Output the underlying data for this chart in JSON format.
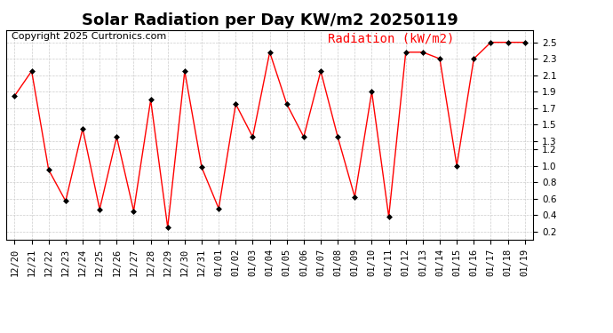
{
  "title": "Solar Radiation per Day KW/m2 20250119",
  "copyright": "Copyright 2025 Curtronics.com",
  "legend_label": "Radiation (kW/m2)",
  "dates": [
    "12/20",
    "12/21",
    "12/22",
    "12/23",
    "12/24",
    "12/25",
    "12/26",
    "12/27",
    "12/28",
    "12/29",
    "12/30",
    "12/31",
    "01/01",
    "01/02",
    "01/03",
    "01/04",
    "01/05",
    "01/06",
    "01/07",
    "01/08",
    "01/09",
    "01/10",
    "01/11",
    "01/12",
    "01/13",
    "01/14",
    "01/15",
    "01/16",
    "01/17",
    "01/18",
    "01/19"
  ],
  "values": [
    1.85,
    2.15,
    0.95,
    0.57,
    1.45,
    0.47,
    1.35,
    0.45,
    1.8,
    0.25,
    2.15,
    0.98,
    0.48,
    1.75,
    1.35,
    2.38,
    1.75,
    1.35,
    2.15,
    1.35,
    0.62,
    1.9,
    0.38,
    2.38,
    2.38,
    2.3,
    1.0,
    2.3,
    2.5,
    2.5,
    2.5
  ],
  "line_color": "red",
  "marker_color": "black",
  "background_color": "#ffffff",
  "grid_color": "#cccccc",
  "ylim": [
    0.1,
    2.65
  ],
  "yticks": [
    0.2,
    0.4,
    0.6,
    0.8,
    1.0,
    1.2,
    1.3,
    1.5,
    1.7,
    1.9,
    2.1,
    2.3,
    2.5
  ],
  "title_fontsize": 13,
  "legend_fontsize": 10,
  "copyright_fontsize": 8,
  "tick_fontsize": 7.5
}
